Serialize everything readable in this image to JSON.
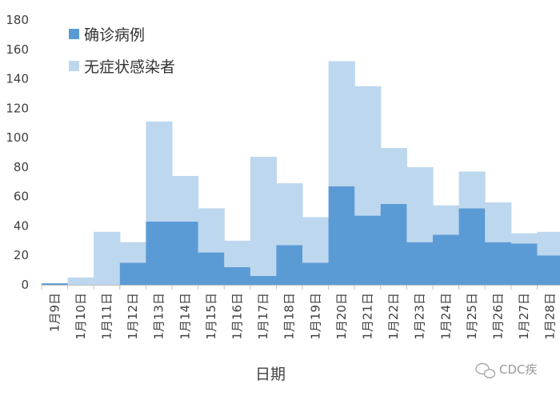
{
  "chart_data": {
    "type": "bar",
    "stacked": true,
    "categories": [
      "1月9日",
      "1月10日",
      "1月11日",
      "1月12日",
      "1月13日",
      "1月14日",
      "1月15日",
      "1月16日",
      "1月17日",
      "1月18日",
      "1月19日",
      "1月20日",
      "1月21日",
      "1月22日",
      "1月23日",
      "1月24日",
      "1月25日",
      "1月26日",
      "1月27日",
      "1月28日"
    ],
    "series": [
      {
        "name": "确诊病例",
        "color": "#5b9bd5",
        "values": [
          1,
          0,
          0,
          15,
          43,
          43,
          22,
          12,
          6,
          27,
          15,
          67,
          47,
          55,
          29,
          34,
          52,
          29,
          28,
          20
        ]
      },
      {
        "name": "无症状感染者",
        "color": "#bdd7ee",
        "values": [
          0,
          5,
          36,
          14,
          68,
          31,
          30,
          18,
          81,
          42,
          31,
          85,
          88,
          38,
          51,
          20,
          25,
          27,
          7,
          16
        ]
      }
    ],
    "title": "",
    "xlabel": "日期",
    "ylabel": "",
    "ylim": [
      0,
      180
    ],
    "yticks": [
      0,
      20,
      40,
      60,
      80,
      100,
      120,
      140,
      160,
      180
    ],
    "legend_position": "top-left",
    "grid": false
  },
  "watermark": {
    "text": "CDC疾",
    "icon": "wechat-icon"
  }
}
